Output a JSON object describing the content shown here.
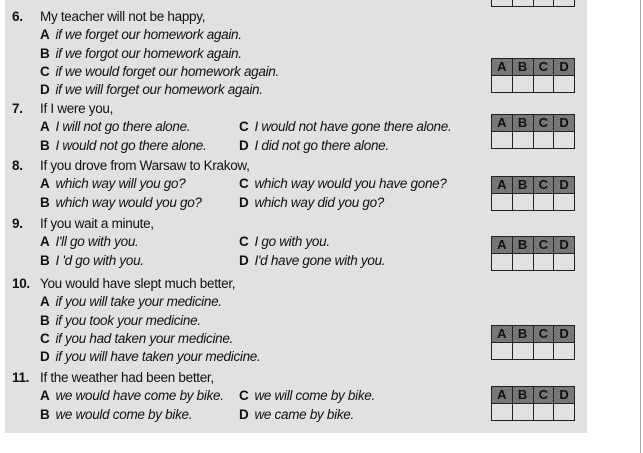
{
  "answer_letters": [
    "A",
    "B",
    "C",
    "D"
  ],
  "questions": [
    {
      "number": "6.",
      "stem": "My teacher will not be happy,",
      "options": [
        {
          "letter": "A",
          "text": "if we forget our homework again."
        },
        {
          "letter": "B",
          "text": "if we forgot our homework again."
        },
        {
          "letter": "C",
          "text": "if we would forget our homework again."
        },
        {
          "letter": "D",
          "text": "if we will forget our homework again."
        }
      ]
    },
    {
      "number": "7.",
      "stem": "If I were you,",
      "options": [
        {
          "letter": "A",
          "text": "I will not go there alone."
        },
        {
          "letter": "C",
          "text": "I would not have gone there alone."
        },
        {
          "letter": "B",
          "text": "I would not go there alone."
        },
        {
          "letter": "D",
          "text": "I did not go there alone."
        }
      ]
    },
    {
      "number": "8.",
      "stem": "If you drove from Warsaw to Krakow,",
      "options": [
        {
          "letter": "A",
          "text": "which way will you go?"
        },
        {
          "letter": "C",
          "text": "which way would you have gone?"
        },
        {
          "letter": "B",
          "text": "which way would you go?"
        },
        {
          "letter": "D",
          "text": "which way did you go?"
        }
      ]
    },
    {
      "number": "9.",
      "stem": "If you wait a minute,",
      "options": [
        {
          "letter": "A",
          "text": "I'll go with you."
        },
        {
          "letter": "C",
          "text": "I go with you."
        },
        {
          "letter": "B",
          "text": "I 'd go with you."
        },
        {
          "letter": "D",
          "text": "I'd have gone with you."
        }
      ]
    },
    {
      "number": "10.",
      "stem": "You would have slept much better,",
      "options": [
        {
          "letter": "A",
          "text": "if you will take your medicine."
        },
        {
          "letter": "B",
          "text": "if you took your medicine."
        },
        {
          "letter": "C",
          "text": "if you had taken your medicine."
        },
        {
          "letter": "D",
          "text": "if you will have taken your medicine."
        }
      ]
    },
    {
      "number": "11.",
      "stem": "If the weather had been better,",
      "options": [
        {
          "letter": "A",
          "text": "we would have come by bike."
        },
        {
          "letter": "C",
          "text": "we will come by bike."
        },
        {
          "letter": "B",
          "text": "we would come by bike."
        },
        {
          "letter": "D",
          "text": "we came by bike."
        }
      ]
    }
  ]
}
